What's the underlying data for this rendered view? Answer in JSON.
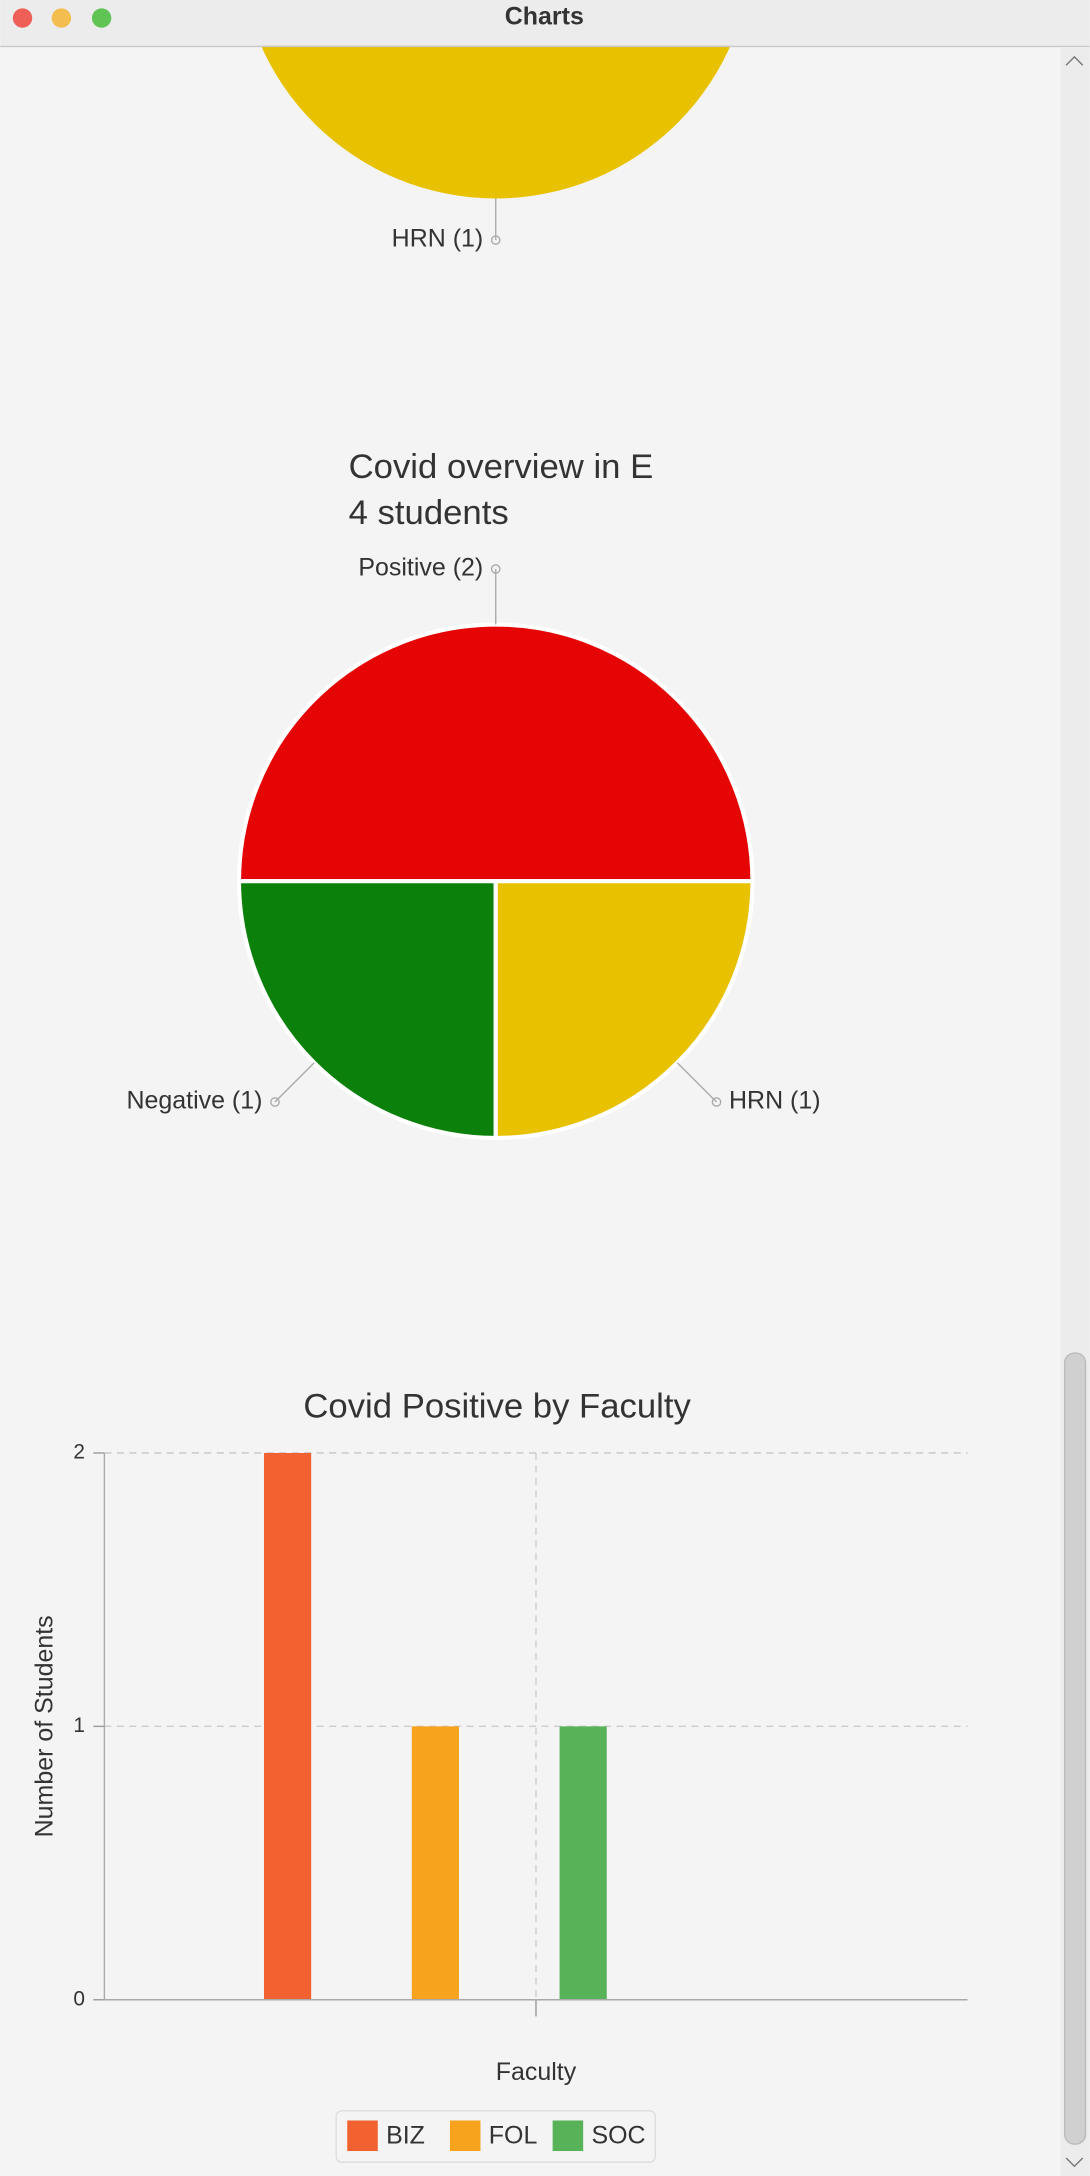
{
  "window": {
    "title": "Charts"
  },
  "charts": [
    {
      "type": "pie",
      "categories": [
        "HRN"
      ],
      "values": [
        1
      ],
      "value_labels": [
        "HRN (1)"
      ],
      "colors": [
        "#e8c200"
      ]
    },
    {
      "type": "pie",
      "title": "Covid overview in E",
      "subtitle": "4 students",
      "categories": [
        "Positive",
        "Negative",
        "HRN"
      ],
      "values": [
        2,
        1,
        1
      ],
      "value_labels": [
        "Positive (2)",
        "Negative (1)",
        "HRN (1)"
      ],
      "colors": [
        "#e60505",
        "#0b800b",
        "#e8c200"
      ]
    },
    {
      "type": "bar",
      "title": "Covid Positive by Faculty",
      "xlabel": "Faculty",
      "ylabel": "Number of Students",
      "categories": [
        null
      ],
      "series": [
        {
          "name": "BIZ",
          "color": "#f26130",
          "values": [
            2
          ]
        },
        {
          "name": "FOL",
          "color": "#f8a31d",
          "values": [
            1
          ]
        },
        {
          "name": "SOC",
          "color": "#58b257",
          "values": [
            1
          ]
        }
      ],
      "ylim": [
        0,
        2
      ],
      "yticks": [
        0,
        1,
        2
      ],
      "grid": true,
      "legend": "bottom"
    }
  ]
}
